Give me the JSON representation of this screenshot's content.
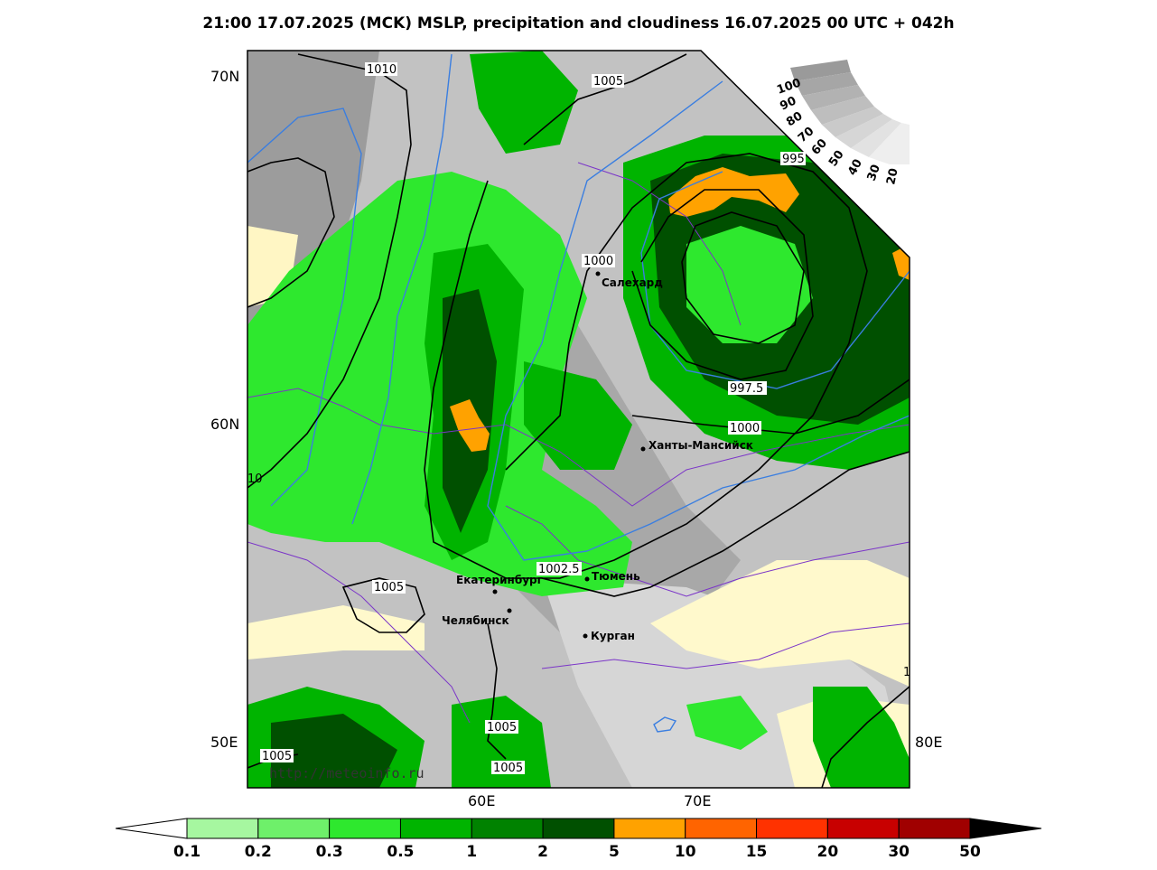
{
  "title": "21:00 17.07.2025 (MCK) MSLP, precipitation and cloudiness 16.07.2025 00 UTC + 042h",
  "watermark": "http://meteoinfo.ru",
  "latitude_labels": [
    "70N",
    "60N"
  ],
  "longitude_labels": [
    "50E",
    "60E",
    "70E",
    "80E"
  ],
  "isobar_labels": [
    "1010",
    "1005",
    "1000",
    "997.5",
    "995",
    "1000",
    "1002.5",
    "1005",
    "10",
    "1005",
    "1005",
    "1005",
    "1"
  ],
  "cities": [
    {
      "name": "Салехард"
    },
    {
      "name": "Ханты-Мансийск"
    },
    {
      "name": "Екатеринбург"
    },
    {
      "name": "Тюмень"
    },
    {
      "name": "Челябинск"
    },
    {
      "name": "Курган"
    }
  ],
  "cloud_scale": {
    "ticks": [
      "100",
      "90",
      "80",
      "70",
      "60",
      "50",
      "40",
      "30",
      "20"
    ]
  },
  "colorbar": {
    "ticks": [
      "0.1",
      "0.2",
      "0.3",
      "0.5",
      "1",
      "2",
      "5",
      "10",
      "15",
      "20",
      "30",
      "50"
    ],
    "colors": [
      "#a6f7a0",
      "#6ef06a",
      "#2ee82e",
      "#00b400",
      "#008200",
      "#005000",
      "#ffa200",
      "#ff6400",
      "#ff3200",
      "#c80000",
      "#a00000",
      "#000000"
    ]
  },
  "colors": {
    "green_light": "#6ef06a",
    "green_mid": "#00b400",
    "green_dark": "#005000",
    "orange": "#ffa200",
    "cloud_grey": "#b4b4b4",
    "clear_yellow": "#fff9cc",
    "isobar": "#000000",
    "isotherm": "#3a7ee0",
    "border": "#7b35c8"
  }
}
